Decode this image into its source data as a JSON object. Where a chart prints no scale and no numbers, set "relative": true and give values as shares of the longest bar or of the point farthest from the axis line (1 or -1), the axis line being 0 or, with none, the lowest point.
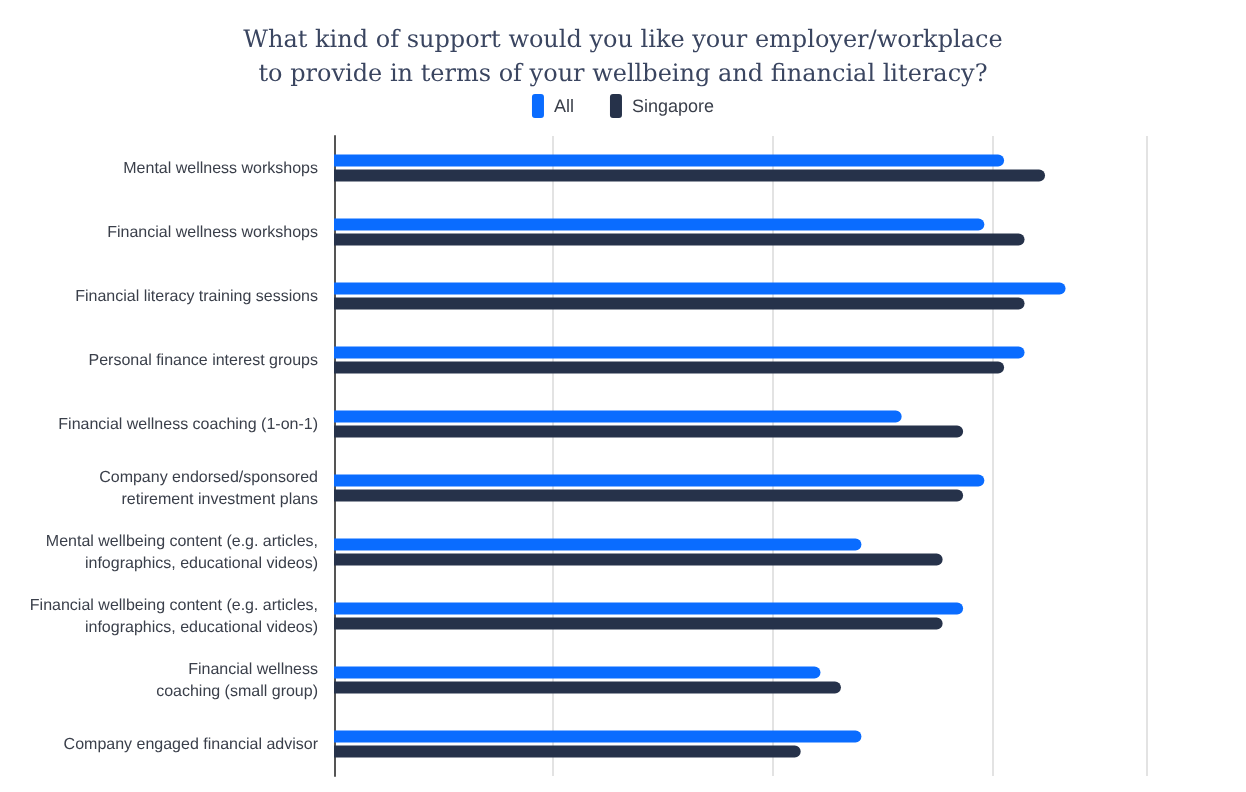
{
  "chart_data": {
    "type": "bar",
    "orientation": "horizontal",
    "relative": true,
    "title": "What kind of support would you like your employer/workplace\nto provide in terms of your wellbeing and financial literacy?",
    "categories": [
      "Mental wellness workshops",
      "Financial wellness workshops",
      "Financial literacy training sessions",
      "Personal finance interest groups",
      "Financial wellness coaching (1-on-1)",
      "Company endorsed/sponsored\nretirement investment plans",
      "Mental wellbeing content (e.g. articles,\ninfographics, educational videos)",
      "Financial wellbeing content (e.g. articles,\ninfographics, educational videos)",
      "Financial wellness\ncoaching (small group)",
      "Company engaged financial advisor"
    ],
    "series": [
      {
        "name": "All",
        "color": "#0a6cff",
        "values": [
          0.916,
          0.889,
          1,
          0.944,
          0.776,
          0.889,
          0.721,
          0.86,
          0.665,
          0.721
        ]
      },
      {
        "name": "Singapore",
        "color": "#26324a",
        "values": [
          0.972,
          0.944,
          0.944,
          0.916,
          0.86,
          0.86,
          0.832,
          0.832,
          0.693,
          0.638
        ]
      }
    ],
    "grid": "x",
    "legend": "top"
  }
}
